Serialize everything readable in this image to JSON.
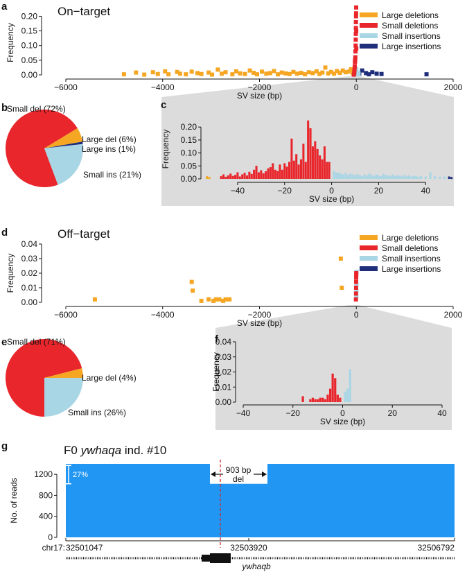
{
  "colors": {
    "large_del": "#f5a623",
    "small_del": "#e8262c",
    "small_ins": "#a9d6e5",
    "large_ins": "#1f2e7a",
    "zoom_bg": "#dcdcdc",
    "coverage": "#2196f3",
    "cut": "#d62728"
  },
  "legend": [
    {
      "key": "large_del",
      "label": "Large deletions"
    },
    {
      "key": "small_del",
      "label": "Small deletions"
    },
    {
      "key": "small_ins",
      "label": "Small insertions"
    },
    {
      "key": "large_ins",
      "label": "Large insertions"
    }
  ],
  "panels": {
    "a": "a",
    "b": "b",
    "c": "c",
    "d": "d",
    "e": "e",
    "f": "f",
    "g": "g"
  },
  "on_target": {
    "title": "On−target"
  },
  "off_target": {
    "title": "Off−target"
  },
  "chart_data": [
    {
      "id": "a",
      "type": "scatter",
      "xlabel": "SV size (bp)",
      "ylabel": "Frequency",
      "xlim": [
        -6000,
        2000
      ],
      "ylim": [
        0,
        0.22
      ],
      "xticks": [
        -6000,
        -4000,
        -2000,
        0,
        2000
      ],
      "xtick_labels": [
        "−6000",
        "−4000",
        "−2000",
        "0",
        "2000"
      ],
      "yticks": [
        0,
        0.05,
        0.1,
        0.15,
        0.2
      ],
      "ytick_labels": [
        "0.00",
        "0.05",
        "0.10",
        "0.15",
        "0.20"
      ],
      "series": [
        {
          "name": "Large deletions",
          "key": "large_del",
          "points": [
            [
              -4800,
              0.002
            ],
            [
              -4550,
              0.008
            ],
            [
              -4380,
              0.001
            ],
            [
              -4200,
              0.009
            ],
            [
              -4100,
              0.003
            ],
            [
              -3950,
              0.012
            ],
            [
              -3880,
              0.002
            ],
            [
              -3700,
              0.01
            ],
            [
              -3640,
              0.004
            ],
            [
              -3520,
              0.002
            ],
            [
              -3400,
              0.011
            ],
            [
              -3280,
              0.006
            ],
            [
              -3200,
              0.003
            ],
            [
              -3050,
              0.008
            ],
            [
              -2980,
              0.001
            ],
            [
              -2860,
              0.018
            ],
            [
              -2780,
              0.004
            ],
            [
              -2700,
              0.009
            ],
            [
              -2560,
              0.002
            ],
            [
              -2480,
              0.012
            ],
            [
              -2400,
              0.005
            ],
            [
              -2300,
              0.003
            ],
            [
              -2200,
              0.015
            ],
            [
              -2120,
              0.007
            ],
            [
              -2050,
              0.002
            ],
            [
              -1950,
              0.011
            ],
            [
              -1860,
              0.004
            ],
            [
              -1780,
              0.006
            ],
            [
              -1700,
              0.013
            ],
            [
              -1620,
              0.002
            ],
            [
              -1540,
              0.008
            ],
            [
              -1460,
              0.005
            ],
            [
              -1380,
              0.003
            ],
            [
              -1300,
              0.01
            ],
            [
              -1220,
              0.004
            ],
            [
              -1140,
              0.007
            ],
            [
              -1060,
              0.002
            ],
            [
              -980,
              0.009
            ],
            [
              -900,
              0.006
            ],
            [
              -820,
              0.012
            ],
            [
              -760,
              0.003
            ],
            [
              -700,
              0.008
            ],
            [
              -640,
              0.025
            ],
            [
              -580,
              0.005
            ],
            [
              -520,
              0.01
            ],
            [
              -460,
              0.004
            ],
            [
              -400,
              0.013
            ],
            [
              -340,
              0.007
            ],
            [
              -280,
              0.015
            ],
            [
              -220,
              0.009
            ],
            [
              -160,
              0.011
            ],
            [
              -110,
              0.019
            ],
            [
              -70,
              0.005
            ]
          ]
        },
        {
          "name": "Small deletions",
          "key": "small_del",
          "points": [
            [
              -50,
              0.001
            ],
            [
              -44,
              0.005
            ],
            [
              -40,
              0.012
            ],
            [
              -36,
              0.02
            ],
            [
              -32,
              0.03
            ],
            [
              -28,
              0.045
            ],
            [
              -24,
              0.05
            ],
            [
              -20,
              0.06
            ],
            [
              -17,
              0.08
            ],
            [
              -14,
              0.1
            ],
            [
              -12,
              0.12
            ],
            [
              -10,
              0.14
            ],
            [
              -9,
              0.16
            ],
            [
              -8,
              0.18
            ],
            [
              -6,
              0.2
            ],
            [
              -5,
              0.21
            ],
            [
              -3,
              0.23
            ],
            [
              -2,
              0.15
            ],
            [
              -1,
              0.09
            ]
          ]
        },
        {
          "name": "Small insertions",
          "key": "small_ins",
          "points": [
            [
              1,
              0.02
            ],
            [
              3,
              0.01
            ],
            [
              6,
              0.005
            ],
            [
              10,
              0.008
            ],
            [
              14,
              0.004
            ],
            [
              18,
              0.006
            ],
            [
              22,
              0.002
            ],
            [
              26,
              0.007
            ],
            [
              30,
              0.003
            ],
            [
              34,
              0.005
            ],
            [
              40,
              0.002
            ],
            [
              46,
              0.004
            ]
          ]
        },
        {
          "name": "Large insertions",
          "key": "large_ins",
          "points": [
            [
              60,
              0.004
            ],
            [
              120,
              0.015
            ],
            [
              200,
              0.006
            ],
            [
              260,
              0.002
            ],
            [
              330,
              0.009
            ],
            [
              420,
              0.004
            ],
            [
              520,
              0.003
            ],
            [
              1450,
              0.002
            ]
          ]
        }
      ]
    },
    {
      "id": "b",
      "type": "pie",
      "slices": [
        {
          "label": "Small del (72%)",
          "value": 72,
          "key": "small_del"
        },
        {
          "label": "Large del (6%)",
          "value": 6,
          "key": "large_del"
        },
        {
          "label": "Large ins (1%)",
          "value": 1,
          "key": "large_ins"
        },
        {
          "label": "Small ins (21%)",
          "value": 21,
          "key": "small_ins"
        }
      ]
    },
    {
      "id": "c",
      "type": "bar",
      "xlabel": "SV size (bp)",
      "ylabel": "Frequency",
      "xlim": [
        -55,
        52
      ],
      "ylim": [
        0,
        0.23
      ],
      "xticks": [
        -40,
        -20,
        0,
        20,
        40
      ],
      "xtick_labels": [
        "−40",
        "−20",
        "0",
        "20",
        "40"
      ],
      "yticks": [
        0,
        0.05,
        0.1,
        0.15,
        0.2
      ],
      "ytick_labels": [
        "0.00",
        "0.05",
        "0.10",
        "0.15",
        "0.20"
      ],
      "series": [
        {
          "name": "Small deletions",
          "key": "small_del",
          "x": [
            -47,
            -46,
            -45,
            -44,
            -43,
            -42,
            -41,
            -40,
            -39,
            -38,
            -37,
            -36,
            -35,
            -34,
            -33,
            -32,
            -31,
            -30,
            -29,
            -28,
            -27,
            -26,
            -25,
            -24,
            -23,
            -22,
            -21,
            -20,
            -19,
            -18,
            -17,
            -16,
            -15,
            -14,
            -13,
            -12,
            -11,
            -10,
            -9,
            -8,
            -7,
            -6,
            -5,
            -4,
            -3,
            -2,
            -1
          ],
          "values": [
            0.005,
            0.012,
            0.003,
            0.008,
            0.015,
            0.006,
            0.01,
            0.02,
            0.004,
            0.012,
            0.018,
            0.008,
            0.022,
            0.014,
            0.03,
            0.045,
            0.02,
            0.028,
            0.016,
            0.024,
            0.035,
            0.04,
            0.055,
            0.03,
            0.025,
            0.05,
            0.03,
            0.055,
            0.042,
            0.06,
            0.15,
            0.065,
            0.09,
            0.05,
            0.07,
            0.13,
            0.06,
            0.22,
            0.19,
            0.12,
            0.14,
            0.11,
            0.085,
            0.07,
            0.12,
            0.06,
            0.06
          ]
        },
        {
          "name": "Small insertions",
          "key": "small_ins",
          "x": [
            1,
            2,
            3,
            4,
            5,
            6,
            7,
            8,
            9,
            10,
            11,
            12,
            13,
            14,
            15,
            16,
            17,
            18,
            19,
            20,
            21,
            22,
            23,
            24,
            25,
            26,
            27,
            28,
            29,
            30,
            31,
            32,
            33,
            34,
            35,
            36,
            37,
            38,
            40,
            42,
            44,
            46,
            48
          ],
          "values": [
            0.025,
            0.018,
            0.02,
            0.015,
            0.012,
            0.018,
            0.01,
            0.015,
            0.012,
            0.008,
            0.014,
            0.01,
            0.006,
            0.012,
            0.008,
            0.015,
            0.01,
            0.006,
            0.012,
            0.008,
            0.005,
            0.014,
            0.01,
            0.008,
            0.006,
            0.012,
            0.005,
            0.009,
            0.007,
            0.004,
            0.01,
            0.006,
            0.008,
            0.004,
            0.007,
            0.005,
            0.003,
            0.006,
            0.004,
            0.02,
            0.005,
            0.003,
            0.004
          ]
        },
        {
          "name": "Large deletions",
          "key": "large_del",
          "x": [
            -53,
            -52
          ],
          "values": [
            0.005,
            0.002
          ]
        },
        {
          "name": "Large insertions",
          "key": "large_ins",
          "x": [
            50,
            51
          ],
          "values": [
            0.004,
            0.002
          ]
        }
      ]
    },
    {
      "id": "d",
      "type": "scatter",
      "xlabel": "SV size (bp)",
      "ylabel": "Frequency",
      "xlim": [
        -6000,
        2000
      ],
      "ylim": [
        0,
        0.04
      ],
      "xticks": [
        -6000,
        -4000,
        -2000,
        0,
        2000
      ],
      "xtick_labels": [
        "−6000",
        "−4000",
        "−2000",
        "0",
        "2000"
      ],
      "yticks": [
        0,
        0.01,
        0.02,
        0.03,
        0.04
      ],
      "ytick_labels": [
        "0.00",
        "0.01",
        "0.02",
        "0.03",
        "0.04"
      ],
      "series": [
        {
          "name": "Large deletions",
          "key": "large_del",
          "points": [
            [
              -5400,
              0.002
            ],
            [
              -3400,
              0.014
            ],
            [
              -3380,
              0.008
            ],
            [
              -3200,
              0.001
            ],
            [
              -3050,
              0.002
            ],
            [
              -2950,
              0.001
            ],
            [
              -2900,
              0.002
            ],
            [
              -2830,
              0.002
            ],
            [
              -2750,
              0.001
            ],
            [
              -2700,
              0.002
            ],
            [
              -2620,
              0.002
            ],
            [
              -320,
              0.03
            ],
            [
              -300,
              0.01
            ]
          ]
        },
        {
          "name": "Small deletions",
          "key": "small_del",
          "points": [
            [
              -8,
              0.002
            ],
            [
              -6,
              0.006
            ],
            [
              -5,
              0.01
            ],
            [
              -4,
              0.014
            ],
            [
              -3,
              0.017
            ],
            [
              -2,
              0.019
            ],
            [
              -1,
              0.02
            ]
          ]
        },
        {
          "name": "Small insertions",
          "key": "small_ins",
          "points": [
            [
              1,
              0.004
            ],
            [
              2,
              0.008
            ],
            [
              3,
              0.012
            ],
            [
              4,
              0.021
            ]
          ]
        }
      ]
    },
    {
      "id": "e",
      "type": "pie",
      "slices": [
        {
          "label": "Small del (71%)",
          "value": 71,
          "key": "small_del"
        },
        {
          "label": "Large del (4%)",
          "value": 4,
          "key": "large_del"
        },
        {
          "label": "Small ins (26%)",
          "value": 26,
          "key": "small_ins"
        }
      ]
    },
    {
      "id": "f",
      "type": "bar",
      "xlabel": "SV size (bp)",
      "ylabel": "Frequency",
      "xlim": [
        -40,
        40
      ],
      "ylim": [
        0,
        0.04
      ],
      "xticks": [
        -40,
        -20,
        0,
        20,
        40
      ],
      "xtick_labels": [
        "−40",
        "−20",
        "0",
        "20",
        "40"
      ],
      "yticks": [
        0,
        0.01,
        0.02,
        0.03,
        0.04
      ],
      "ytick_labels": [
        "0.00",
        "0.01",
        "0.02",
        "0.03",
        "0.04"
      ],
      "series": [
        {
          "name": "Small deletions",
          "key": "small_del",
          "x": [
            -16,
            -13,
            -12,
            -11,
            -10,
            -9,
            -8,
            -7,
            -6,
            -5,
            -4,
            -3,
            -2,
            -1
          ],
          "values": [
            0.003,
            0.001,
            0.002,
            0.001,
            0.001,
            0.002,
            0.002,
            0.001,
            0.004,
            0.008,
            0.018,
            0.015,
            0.004,
            0.002
          ]
        },
        {
          "name": "Small insertions",
          "key": "small_ins",
          "x": [
            1,
            2,
            3
          ],
          "values": [
            0.006,
            0.008,
            0.021
          ]
        }
      ]
    },
    {
      "id": "g",
      "type": "area",
      "ylabel": "No. of reads",
      "ylim": [
        0,
        1400
      ],
      "yticks": [
        0,
        400,
        800,
        1200
      ],
      "ytick_labels": [
        "0",
        "400",
        "800",
        "1200"
      ],
      "chrom_label": "chr17:",
      "coord_labels": [
        "32501047",
        "32503920",
        "32506792"
      ],
      "title_prefix": "F0 ",
      "title_gene": "ywhaqa",
      "title_suffix": " ind. #10",
      "deletion_label_1": "903 bp",
      "deletion_label_2": "del",
      "percent_label": "27%",
      "gene_label": "ywhaqb"
    }
  ]
}
